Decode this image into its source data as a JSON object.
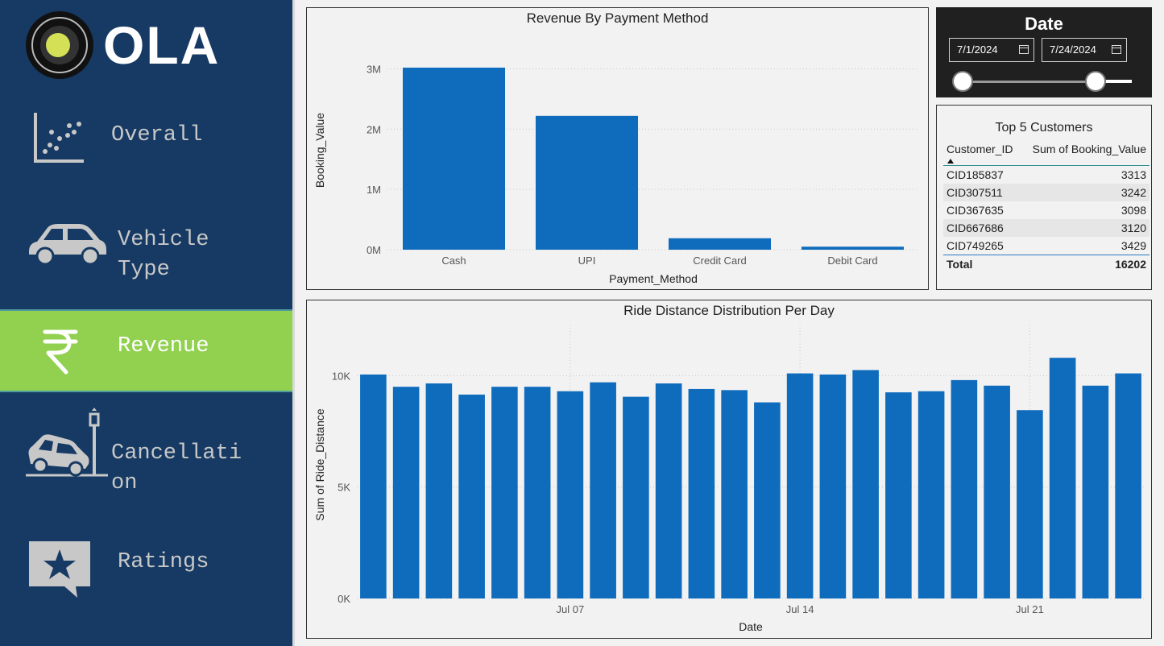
{
  "brand": {
    "name": "OLA"
  },
  "nav": {
    "items": [
      {
        "label": "Overall",
        "icon": "scatter-chart-icon"
      },
      {
        "label": "Vehicle Type",
        "icon": "car-icon"
      },
      {
        "label": "Revenue",
        "icon": "rupee-icon",
        "active": true
      },
      {
        "label": "Cancellation",
        "icon": "car-crash-icon"
      },
      {
        "label": "Ratings",
        "icon": "star-speech-bubble-icon"
      }
    ],
    "vehicle_line1": "Vehicle",
    "vehicle_line2": "Type",
    "cancel_line1": "Cancellati",
    "cancel_line2": "on"
  },
  "date_filter": {
    "title": "Date",
    "start": "7/1/2024",
    "end": "7/24/2024",
    "slider_range": [
      0,
      1
    ]
  },
  "top_customers": {
    "title": "Top 5 Customers",
    "columns": [
      "Customer_ID",
      "Sum of Booking_Value"
    ],
    "rows": [
      [
        "CID185837",
        "3313"
      ],
      [
        "CID307511",
        "3242"
      ],
      [
        "CID367635",
        "3098"
      ],
      [
        "CID667686",
        "3120"
      ],
      [
        "CID749265",
        "3429"
      ]
    ],
    "total_label": "Total",
    "total_value": "16202"
  },
  "colors": {
    "sidebar": "#163a63",
    "active": "#92d050",
    "bar": "#0f6cbd"
  },
  "chart_data": [
    {
      "type": "bar",
      "title": "Revenue By Payment Method",
      "xlabel": "Payment_Method",
      "ylabel": "Booking_Value",
      "categories": [
        "Cash",
        "UPI",
        "Credit Card",
        "Debit Card"
      ],
      "values": [
        3020000,
        2220000,
        190000,
        50000
      ],
      "ylim": [
        0,
        3300000
      ],
      "yticks": [
        0,
        1000000,
        2000000,
        3000000
      ],
      "ytick_labels": [
        "0M",
        "1M",
        "2M",
        "3M"
      ],
      "grid": true
    },
    {
      "type": "bar",
      "title": "Ride Distance Distribution Per Day",
      "xlabel": "Date",
      "ylabel": "Sum of Ride_Distance",
      "categories": [
        "2024-07-01",
        "2024-07-02",
        "2024-07-03",
        "2024-07-04",
        "2024-07-05",
        "2024-07-06",
        "2024-07-07",
        "2024-07-08",
        "2024-07-09",
        "2024-07-10",
        "2024-07-11",
        "2024-07-12",
        "2024-07-13",
        "2024-07-14",
        "2024-07-15",
        "2024-07-16",
        "2024-07-17",
        "2024-07-18",
        "2024-07-19",
        "2024-07-20",
        "2024-07-21",
        "2024-07-22",
        "2024-07-23",
        "2024-07-24"
      ],
      "values": [
        10050,
        9500,
        9650,
        9150,
        9500,
        9500,
        9300,
        9700,
        9050,
        9650,
        9400,
        9350,
        8800,
        10100,
        10050,
        10250,
        9250,
        9300,
        9800,
        9550,
        8450,
        10800,
        9550,
        10100
      ],
      "ylim": [
        0,
        12000
      ],
      "yticks": [
        0,
        5000,
        10000
      ],
      "ytick_labels": [
        "0K",
        "5K",
        "10K"
      ],
      "xtick_labels": [
        {
          "label": "Jul 07",
          "index": 6
        },
        {
          "label": "Jul 14",
          "index": 13
        },
        {
          "label": "Jul 21",
          "index": 20
        }
      ],
      "grid": true
    }
  ]
}
